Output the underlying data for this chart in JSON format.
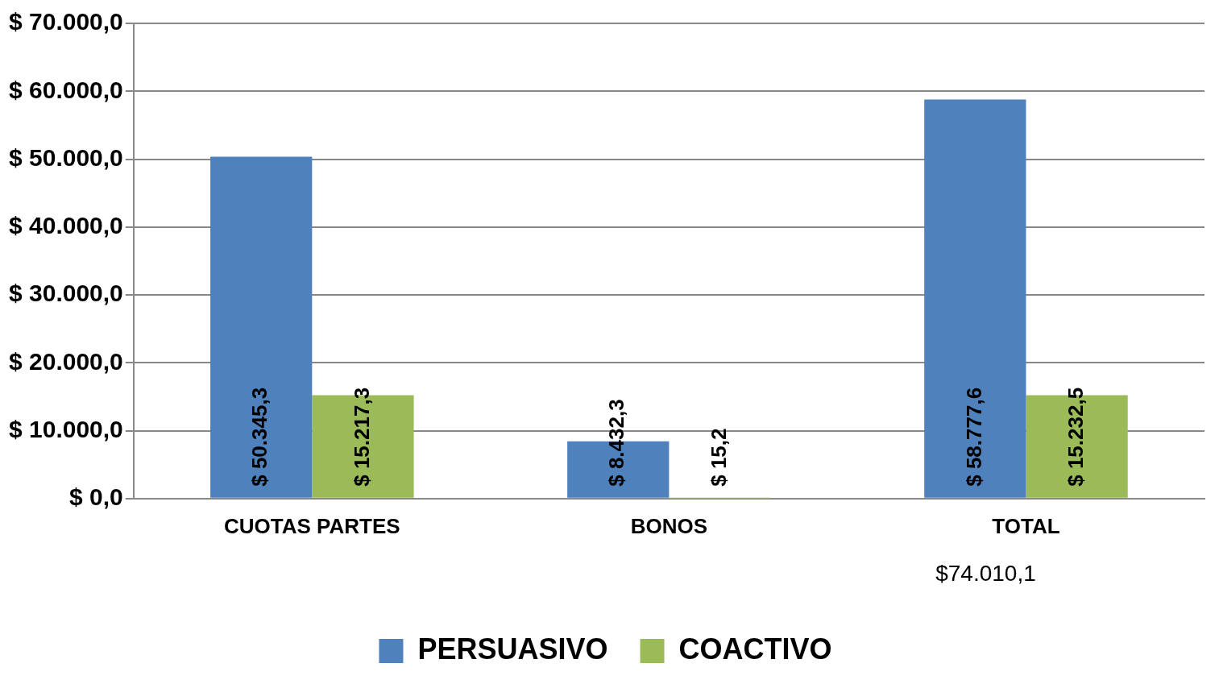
{
  "chart_data": {
    "type": "bar",
    "categories": [
      "CUOTAS PARTES",
      "BONOS",
      "TOTAL"
    ],
    "series": [
      {
        "name": "PERSUASIVO",
        "color": "#4f81bd",
        "values": [
          50345.3,
          8432.3,
          58777.6
        ],
        "value_labels": [
          "$ 50.345,3",
          "$ 8.432,3",
          "$ 58.777,6"
        ]
      },
      {
        "name": "COACTIVO",
        "color": "#9bbb59",
        "values": [
          15217.3,
          15.2,
          15232.5
        ],
        "value_labels": [
          "$ 15.217,3",
          "$ 15,2",
          "$ 15.232,5"
        ]
      }
    ],
    "ylim": [
      0,
      70000
    ],
    "yticks": [
      {
        "value": 0,
        "label": "$ 0,0"
      },
      {
        "value": 10000,
        "label": "$ 10.000,0"
      },
      {
        "value": 20000,
        "label": "$ 20.000,0"
      },
      {
        "value": 30000,
        "label": "$ 30.000,0"
      },
      {
        "value": 40000,
        "label": "$ 40.000,0"
      },
      {
        "value": 50000,
        "label": "$ 50.000,0"
      },
      {
        "value": 60000,
        "label": "$ 60.000,0"
      },
      {
        "value": 70000,
        "label": "$ 70.000,0"
      }
    ],
    "grid": "y",
    "legend": "bottom",
    "annotations": [
      "$74.010,1"
    ]
  }
}
